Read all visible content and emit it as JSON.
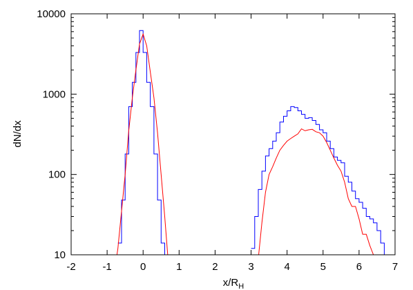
{
  "chart_data": {
    "type": "line",
    "title": "",
    "xlabel": "x/R",
    "xlabel_sub": "H",
    "ylabel": "dN/dx",
    "xlim": [
      -2,
      7
    ],
    "ylim": [
      10,
      10000
    ],
    "yscale": "log",
    "grid": false,
    "legend": "none",
    "x_ticks": [
      "-2",
      "-1",
      "0",
      "1",
      "2",
      "3",
      "4",
      "5",
      "6",
      "7"
    ],
    "y_ticks": [
      "10",
      "100",
      "1000",
      "10000"
    ],
    "series": [
      {
        "style": "step",
        "color": "#0000ff",
        "edges": [
          -0.7,
          -0.6,
          -0.5,
          -0.4,
          -0.3,
          -0.2,
          -0.1,
          0.0,
          0.1,
          0.2,
          0.3,
          0.4,
          0.5,
          0.6,
          0.7
        ],
        "values": [
          14,
          48,
          180,
          700,
          1400,
          3300,
          6200,
          3300,
          1400,
          700,
          180,
          48,
          14,
          10
        ],
        "edges2": [
          3.0,
          3.1,
          3.2,
          3.3,
          3.4,
          3.5,
          3.6,
          3.7,
          3.8,
          3.9,
          4.0,
          4.1,
          4.2,
          4.3,
          4.4,
          4.5,
          4.6,
          4.7,
          4.8,
          4.9,
          5.0,
          5.1,
          5.2,
          5.3,
          5.4,
          5.5,
          5.6,
          5.7,
          5.8,
          5.9,
          6.0,
          6.1,
          6.2,
          6.3,
          6.4,
          6.5,
          6.6,
          6.7,
          6.8
        ],
        "values2": [
          12,
          30,
          65,
          110,
          170,
          210,
          260,
          330,
          450,
          530,
          620,
          700,
          680,
          620,
          560,
          500,
          510,
          470,
          420,
          360,
          330,
          260,
          210,
          165,
          150,
          140,
          95,
          80,
          62,
          50,
          45,
          38,
          30,
          28,
          25,
          20,
          14,
          10
        ]
      },
      {
        "style": "line",
        "color": "#ff0000",
        "x": [
          -0.8,
          -0.7,
          -0.6,
          -0.5,
          -0.4,
          -0.3,
          -0.2,
          -0.1,
          0.0,
          0.1,
          0.2,
          0.3,
          0.4,
          0.5,
          0.6,
          0.7
        ],
        "y": [
          6,
          12,
          35,
          100,
          350,
          900,
          2000,
          4200,
          5600,
          4000,
          1900,
          900,
          330,
          100,
          30,
          8
        ],
        "x2": [
          3.2,
          3.3,
          3.4,
          3.5,
          3.6,
          3.7,
          3.8,
          3.9,
          4.0,
          4.1,
          4.2,
          4.3,
          4.4,
          4.5,
          4.6,
          4.7,
          4.8,
          4.9,
          5.0,
          5.1,
          5.2,
          5.3,
          5.4,
          5.5,
          5.6,
          5.7,
          5.8,
          5.9,
          6.0,
          6.1,
          6.2,
          6.3,
          6.4,
          6.5,
          6.6
        ],
        "y2": [
          9,
          25,
          60,
          100,
          125,
          160,
          200,
          230,
          260,
          280,
          300,
          320,
          370,
          350,
          360,
          365,
          340,
          330,
          300,
          250,
          200,
          160,
          130,
          110,
          80,
          50,
          40,
          40,
          28,
          18,
          18,
          13,
          10,
          8,
          6
        ]
      }
    ]
  }
}
